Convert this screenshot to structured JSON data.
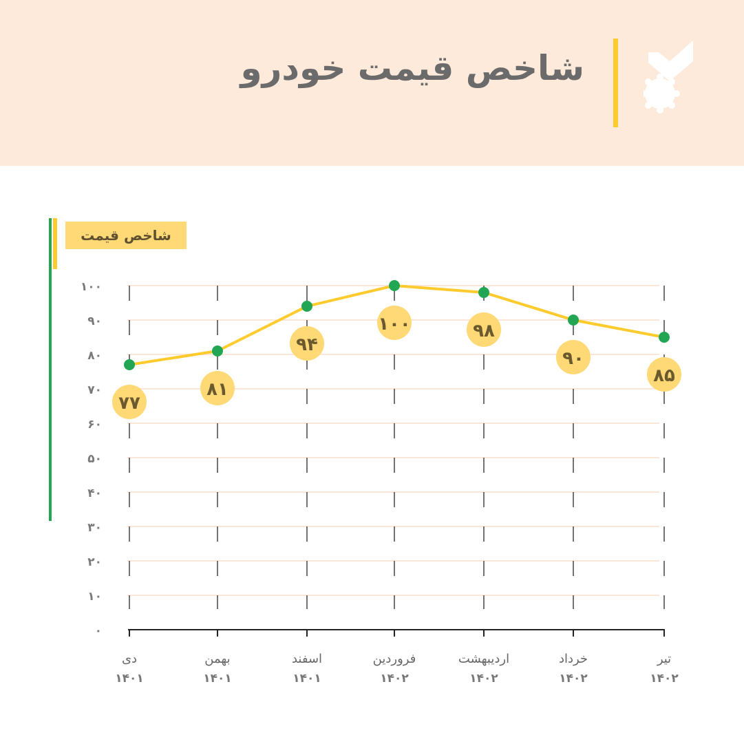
{
  "header": {
    "title": "شاخص قیمت خودرو",
    "logo_icon": "medal-check-icon"
  },
  "colors": {
    "header_bg": "#fdeadb",
    "line": "#fdcb2e",
    "point": "#22a654",
    "bubble": "#ffd976",
    "grid": "#fbe6d8"
  },
  "chart_data": {
    "type": "line",
    "title": "شاخص قیمت خودرو",
    "legend": {
      "label": "شاخص قیمت",
      "placement": "top-left"
    },
    "categories": [
      {
        "month": "دی",
        "year": "۱۴۰۱"
      },
      {
        "month": "بهمن",
        "year": "۱۴۰۱"
      },
      {
        "month": "اسفند",
        "year": "۱۴۰۱"
      },
      {
        "month": "فروردین",
        "year": "۱۴۰۲"
      },
      {
        "month": "اردیبهشت",
        "year": "۱۴۰۲"
      },
      {
        "month": "خرداد",
        "year": "۱۴۰۲"
      },
      {
        "month": "تیر",
        "year": "۱۴۰۲"
      }
    ],
    "series": [
      {
        "name": "شاخص قیمت",
        "values": [
          77,
          81,
          94,
          100,
          98,
          90,
          85
        ]
      }
    ],
    "data_labels": [
      "۷۷",
      "۸۱",
      "۹۴",
      "۱۰۰",
      "۹۸",
      "۹۰",
      "۸۵"
    ],
    "y_ticks": [
      0,
      10,
      20,
      30,
      40,
      50,
      60,
      70,
      80,
      90,
      100
    ],
    "y_tick_labels": [
      "۰",
      "۱۰",
      "۲۰",
      "۳۰",
      "۴۰",
      "۵۰",
      "۶۰",
      "۷۰",
      "۸۰",
      "۹۰",
      "۱۰۰"
    ],
    "ylim": [
      0,
      100
    ],
    "grid": true
  }
}
